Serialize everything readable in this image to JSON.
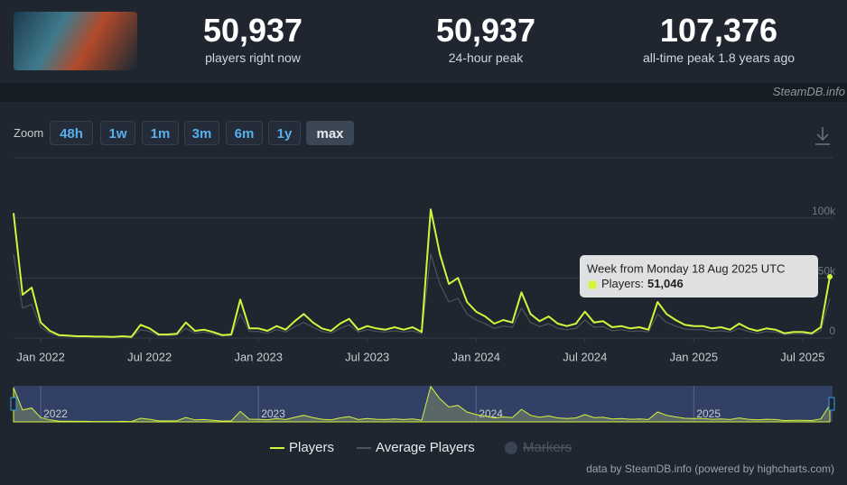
{
  "header": {
    "stats": [
      {
        "value": "50,937",
        "label": "players right now"
      },
      {
        "value": "50,937",
        "label": "24-hour peak"
      },
      {
        "value": "107,376",
        "label": "all-time peak 1.8 years ago"
      }
    ],
    "source": "SteamDB.info"
  },
  "toolbar": {
    "zoom_label": "Zoom",
    "buttons": [
      "48h",
      "1w",
      "1m",
      "3m",
      "6m",
      "1y",
      "max"
    ],
    "active": "max"
  },
  "chart_data": {
    "type": "line",
    "categories": [
      null,
      null,
      null,
      "Jan 2022",
      null,
      null,
      null,
      null,
      null,
      null,
      null,
      null,
      null,
      null,
      null,
      "Jul 2022",
      null,
      null,
      null,
      null,
      null,
      null,
      null,
      null,
      null,
      null,
      null,
      "Jan 2023",
      null,
      null,
      null,
      null,
      null,
      null,
      null,
      null,
      null,
      null,
      null,
      "Jul 2023",
      null,
      null,
      null,
      null,
      null,
      null,
      null,
      null,
      null,
      null,
      null,
      "Jan 2024",
      null,
      null,
      null,
      null,
      null,
      null,
      null,
      null,
      null,
      null,
      null,
      "Jul 2024",
      null,
      null,
      null,
      null,
      null,
      null,
      null,
      null,
      null,
      null,
      null,
      "Jan 2025",
      null,
      null,
      null,
      null,
      null,
      null,
      null,
      null,
      null,
      null,
      null,
      "Jul 2025",
      null,
      null,
      null
    ],
    "series": [
      {
        "name": "Players",
        "color": "#d4f53c",
        "values": [
          104000,
          36000,
          42000,
          13000,
          6000,
          2500,
          2000,
          1500,
          1500,
          1200,
          1200,
          1000,
          1500,
          1000,
          11000,
          8000,
          3000,
          3000,
          3500,
          13000,
          6000,
          7000,
          5000,
          2500,
          3000,
          32000,
          8000,
          8000,
          6000,
          10000,
          7000,
          14000,
          20000,
          13000,
          8000,
          6000,
          12000,
          16000,
          7000,
          10000,
          8000,
          7000,
          9000,
          7000,
          9000,
          5000,
          107000,
          70000,
          45000,
          50000,
          30000,
          22000,
          18000,
          12000,
          15000,
          13000,
          38000,
          20000,
          14000,
          18000,
          12000,
          10000,
          12000,
          22000,
          13000,
          14000,
          9000,
          10000,
          8000,
          9000,
          7000,
          30000,
          20000,
          15000,
          11000,
          10000,
          10000,
          8000,
          9000,
          7000,
          12000,
          8000,
          6000,
          8000,
          7000,
          4000,
          5000,
          5000,
          4000,
          9000,
          51046
        ]
      },
      {
        "name": "Average Players",
        "color": "#4d545c",
        "values": [
          70000,
          25000,
          28000,
          9000,
          4000,
          1800,
          1400,
          1000,
          1000,
          800,
          800,
          700,
          1000,
          700,
          7000,
          5500,
          2000,
          2000,
          2500,
          8000,
          4000,
          5000,
          3500,
          1800,
          2000,
          20000,
          5500,
          5500,
          4000,
          7000,
          5000,
          9500,
          13000,
          9000,
          5500,
          4000,
          8000,
          11000,
          5000,
          7000,
          5500,
          5000,
          6000,
          5000,
          6000,
          3500,
          70000,
          45000,
          30000,
          33000,
          20000,
          15000,
          12000,
          8000,
          10000,
          9000,
          25000,
          13000,
          9500,
          12000,
          8000,
          7000,
          8000,
          15000,
          9000,
          9500,
          6000,
          7000,
          5500,
          6000,
          5000,
          20000,
          13000,
          10000,
          7500,
          7000,
          7000,
          5500,
          6000,
          5000,
          8000,
          5500,
          4000,
          5500,
          5000,
          3000,
          3500,
          3500,
          3000,
          6000,
          33000
        ]
      }
    ],
    "ylim": [
      0,
      150000
    ],
    "yticks": [
      0,
      {
        "value": 50000,
        "label": "50k"
      },
      {
        "value": 100000,
        "label": "100k"
      }
    ],
    "grid": true,
    "navigator_labels": [
      "2022",
      "2023",
      "2024",
      "2025"
    ],
    "legend_extra": "Markers",
    "tooltip": {
      "title": "Week from Monday 18 Aug 2025 UTC",
      "label": "Players:",
      "value": "51,046"
    },
    "credits": "data by SteamDB.info (powered by highcharts.com)"
  }
}
